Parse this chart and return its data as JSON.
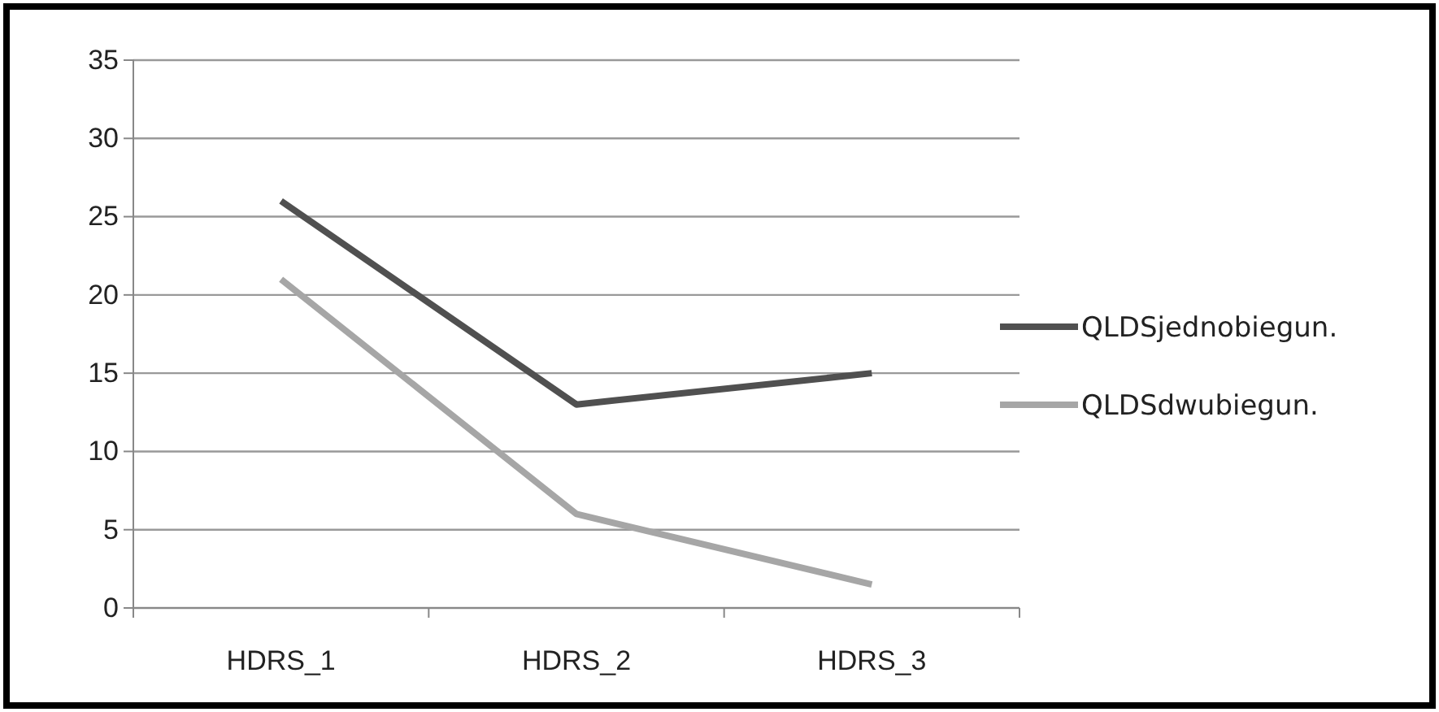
{
  "chart_data": {
    "type": "line",
    "categories": [
      "HDRS_1",
      "HDRS_2",
      "HDRS_3"
    ],
    "series": [
      {
        "name": "QLDSjednobiegun.",
        "color": "#505050",
        "values": [
          26,
          13,
          15
        ]
      },
      {
        "name": "QLDSdwubiegun.",
        "color": "#a6a6a6",
        "values": [
          21,
          6,
          1.5
        ]
      }
    ],
    "ylim": [
      0,
      35
    ],
    "yticks": [
      0,
      5,
      10,
      15,
      20,
      25,
      30,
      35
    ],
    "grid": "y",
    "legend": "right",
    "marker": "none",
    "line_style": "solid"
  }
}
